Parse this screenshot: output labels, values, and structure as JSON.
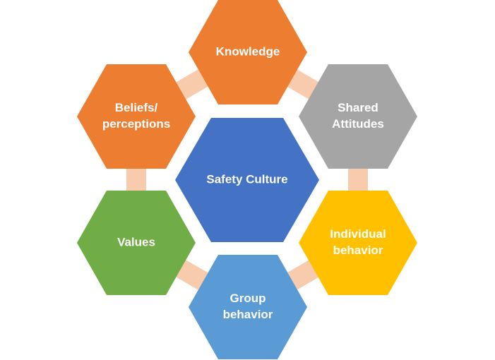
{
  "diagram": {
    "center": {
      "label": "Safety Culture",
      "color": "#4472C4"
    },
    "nodes": [
      {
        "id": "knowledge",
        "lines": [
          "Knowledge"
        ],
        "color": "#ED7D31"
      },
      {
        "id": "shared-attitudes",
        "lines": [
          "Shared",
          "Attitudes"
        ],
        "color": "#A5A5A5"
      },
      {
        "id": "individual-behavior",
        "lines": [
          "Individual",
          "behavior"
        ],
        "color": "#FFC000"
      },
      {
        "id": "group-behavior",
        "lines": [
          "Group",
          "behavior"
        ],
        "color": "#5B9BD5"
      },
      {
        "id": "values",
        "lines": [
          "Values"
        ],
        "color": "#70AD47"
      },
      {
        "id": "beliefs-perceptions",
        "lines": [
          "Beliefs/",
          "perceptions"
        ],
        "color": "#ED7D31"
      }
    ],
    "connector_color": "#F8CBAD"
  }
}
